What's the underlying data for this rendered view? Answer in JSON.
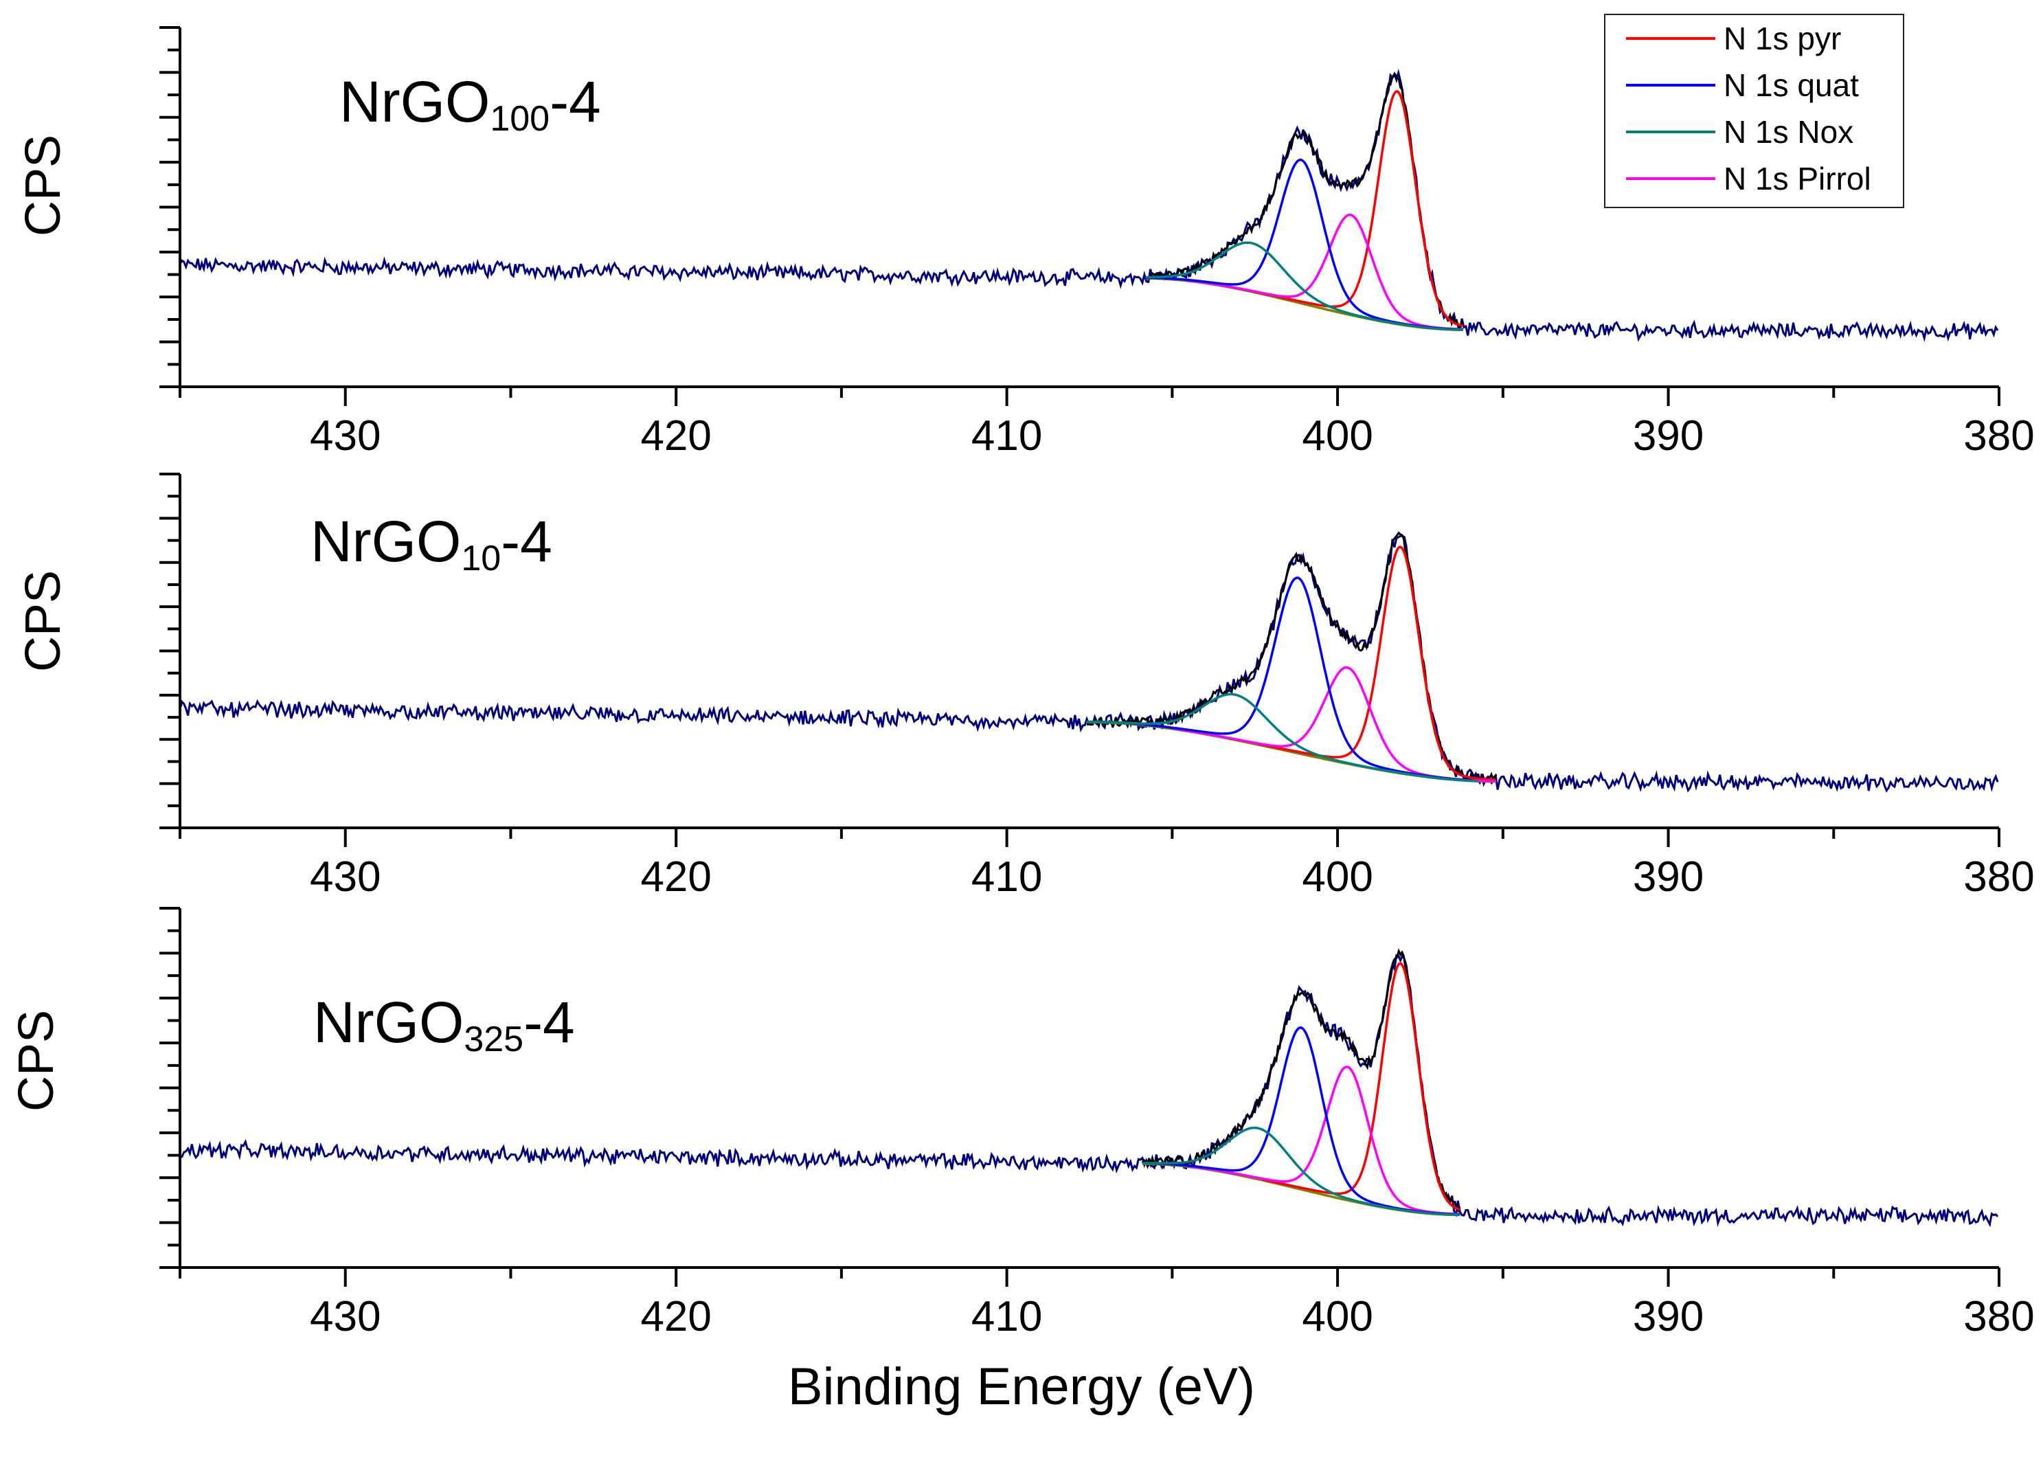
{
  "chart_data": {
    "type": "line",
    "figure_type": "XPS N 1s high-resolution spectra (stacked panels)",
    "xlabel": "Binding Energy (eV)",
    "ylabel": "CPS",
    "xlim": [
      435,
      380
    ],
    "x_ticks": [
      430,
      420,
      410,
      400,
      390,
      380
    ],
    "x_tick_labels": [
      "430",
      "420",
      "410",
      "400",
      "390",
      "380"
    ],
    "x_reversed": true,
    "y_units": "relative (0 = baseline at 380 eV, 1 = max peak)",
    "legend": {
      "position": "top-right",
      "entries": [
        {
          "label": "N 1s pyr",
          "color": "#ff0000"
        },
        {
          "label": "N 1s quat",
          "color": "#0000ff"
        },
        {
          "label": "N 1s Nox",
          "color": "#008080"
        },
        {
          "label": "N 1s Pirrol",
          "color": "#ff00ff"
        }
      ]
    },
    "colors": {
      "raw_data": "#000080",
      "envelope": "#000000",
      "background": "#808000",
      "pyr": "#ff0000",
      "quat": "#0000ff",
      "nox": "#008080",
      "pirrol": "#ff00ff"
    },
    "panels": [
      {
        "sample_label": "NrGO",
        "sample_subscript": "100",
        "sample_suffix": "-4",
        "baseline_high_be": 0.22,
        "baseline_low_be": 0.03,
        "fit_range": [
          405.8,
          396.2
        ],
        "peaks": [
          {
            "component": "pyr",
            "center": 398.2,
            "height": 0.86,
            "fwhm": 1.35
          },
          {
            "component": "pirrol",
            "center": 399.6,
            "height": 0.37,
            "fwhm": 1.55
          },
          {
            "component": "quat",
            "center": 401.1,
            "height": 0.53,
            "fwhm": 1.55
          },
          {
            "component": "nox",
            "center": 402.6,
            "height": 0.18,
            "fwhm": 2.3
          }
        ]
      },
      {
        "sample_label": "NrGO",
        "sample_subscript": "10",
        "sample_suffix": "-4",
        "baseline_high_be": 0.24,
        "baseline_low_be": 0.03,
        "fit_range": [
          407.6,
          395.2
        ],
        "peaks": [
          {
            "component": "pyr",
            "center": 398.1,
            "height": 0.8,
            "fwhm": 1.35
          },
          {
            "component": "pirrol",
            "center": 399.7,
            "height": 0.34,
            "fwhm": 1.65
          },
          {
            "component": "quat",
            "center": 401.2,
            "height": 0.62,
            "fwhm": 1.65
          },
          {
            "component": "nox",
            "center": 403.1,
            "height": 0.16,
            "fwhm": 2.3
          }
        ]
      },
      {
        "sample_label": "NrGO",
        "sample_subscript": "325",
        "sample_suffix": "-4",
        "baseline_high_be": 0.22,
        "baseline_low_be": 0.04,
        "fit_range": [
          405.9,
          396.3
        ],
        "peaks": [
          {
            "component": "pyr",
            "center": 398.1,
            "height": 0.87,
            "fwhm": 1.3
          },
          {
            "component": "pirrol",
            "center": 399.7,
            "height": 0.47,
            "fwhm": 1.5
          },
          {
            "component": "quat",
            "center": 401.1,
            "height": 0.57,
            "fwhm": 1.5
          },
          {
            "component": "nox",
            "center": 402.4,
            "height": 0.18,
            "fwhm": 2.2
          }
        ]
      }
    ]
  }
}
